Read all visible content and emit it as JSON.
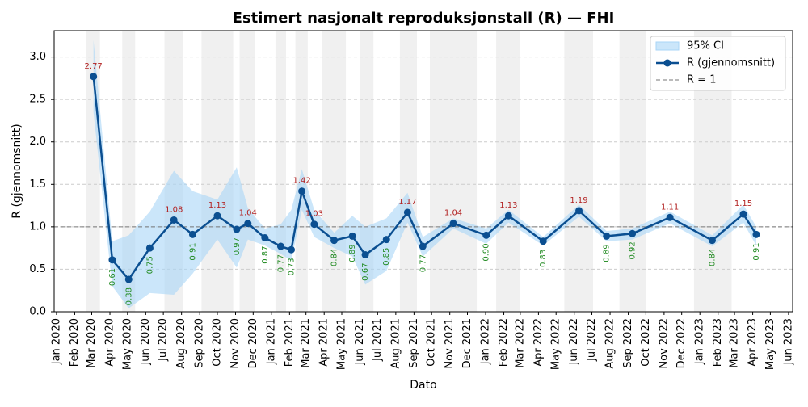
{
  "chart_data": {
    "type": "line",
    "title": "Estimert nasjonalt reproduksjonstall (R) — FHI",
    "x_label": "Dato",
    "y_label": "R (gjennomsnitt)",
    "x": [
      "2020-03-04",
      "2020-04-05",
      "2020-05-03",
      "2020-06-08",
      "2020-07-19",
      "2020-08-20",
      "2020-10-01",
      "2020-11-03",
      "2020-11-22",
      "2020-12-21",
      "2021-01-17",
      "2021-02-04",
      "2021-02-22",
      "2021-03-15",
      "2021-04-18",
      "2021-05-19",
      "2021-06-10",
      "2021-07-16",
      "2021-08-21",
      "2021-09-16",
      "2021-11-07",
      "2022-01-02",
      "2022-02-09",
      "2022-04-09",
      "2022-06-09",
      "2022-07-26",
      "2022-09-08",
      "2022-11-11",
      "2023-01-22",
      "2023-03-16",
      "2023-04-07"
    ],
    "series": [
      {
        "name": "R (gjennomsnitt)",
        "color": "#0b4f91",
        "values": [
          2.77,
          0.61,
          0.38,
          0.75,
          1.08,
          0.91,
          1.13,
          0.97,
          1.04,
          0.87,
          0.77,
          0.73,
          1.42,
          1.03,
          0.84,
          0.89,
          0.67,
          0.85,
          1.17,
          0.77,
          1.04,
          0.9,
          1.13,
          0.83,
          1.19,
          0.89,
          0.92,
          1.11,
          0.84,
          1.15,
          0.91
        ],
        "value_labels": [
          "2.77",
          "0.61",
          "0.38",
          "0.75",
          "1.08",
          "0.91",
          "1.13",
          "0.97",
          "1.04",
          "0.87",
          "0.77",
          "0.73",
          "1.42",
          "1.03",
          "0.84",
          "0.89",
          "0.67",
          "0.85",
          "1.17",
          "0.77",
          "1.04",
          "0.90",
          "1.13",
          "0.83",
          "1.19",
          "0.89",
          "0.92",
          "1.11",
          "0.84",
          "1.15",
          "0.91"
        ]
      }
    ],
    "ci": {
      "name": "95% CI",
      "color": "#a9d5f7",
      "lower": [
        2.35,
        0.3,
        0.04,
        0.22,
        0.2,
        0.45,
        0.85,
        0.52,
        0.85,
        0.78,
        0.68,
        0.6,
        1.2,
        0.88,
        0.75,
        0.65,
        0.32,
        0.48,
        1.05,
        0.65,
        0.98,
        0.8,
        1.05,
        0.78,
        1.12,
        0.83,
        0.85,
        1.04,
        0.77,
        1.05,
        0.78
      ],
      "upper": [
        3.2,
        0.83,
        0.9,
        1.18,
        1.66,
        1.42,
        1.32,
        1.7,
        1.22,
        0.98,
        1.03,
        1.2,
        1.68,
        1.2,
        0.93,
        1.13,
        1.0,
        1.1,
        1.4,
        0.88,
        1.1,
        0.98,
        1.2,
        0.88,
        1.26,
        0.95,
        0.98,
        1.18,
        0.9,
        1.26,
        1.0
      ]
    },
    "ref_line": {
      "name": "R = 1",
      "value": 1,
      "color": "#777777"
    },
    "shaded_periods": [
      [
        "2020-02-21",
        "2020-03-15"
      ],
      [
        "2020-04-22",
        "2020-05-14"
      ],
      [
        "2020-07-03",
        "2020-08-04"
      ],
      [
        "2020-09-04",
        "2020-10-28"
      ],
      [
        "2020-11-08",
        "2020-12-04"
      ],
      [
        "2021-01-08",
        "2021-01-26"
      ],
      [
        "2021-02-11",
        "2021-03-04"
      ],
      [
        "2021-03-29",
        "2021-05-08"
      ],
      [
        "2021-06-01",
        "2021-06-24"
      ],
      [
        "2021-08-08",
        "2021-09-06"
      ],
      [
        "2021-09-28",
        "2021-12-17"
      ],
      [
        "2022-01-19",
        "2022-02-28"
      ],
      [
        "2022-05-15",
        "2022-07-03"
      ],
      [
        "2022-08-17",
        "2022-10-01"
      ],
      [
        "2022-12-22",
        "2023-02-24"
      ]
    ],
    "shade_color": "#f0f0f0",
    "above_color": "#b22222",
    "below_color": "#228b22",
    "xlim": [
      "2019-12-28",
      "2023-06-08"
    ],
    "xticks": [
      {
        "value": "2020-01-01",
        "label": "Jan 2020"
      },
      {
        "value": "2020-02-01",
        "label": "Feb 2020"
      },
      {
        "value": "2020-03-01",
        "label": "Mar 2020"
      },
      {
        "value": "2020-04-01",
        "label": "Apr 2020"
      },
      {
        "value": "2020-05-01",
        "label": "May 2020"
      },
      {
        "value": "2020-06-01",
        "label": "Jun 2020"
      },
      {
        "value": "2020-07-01",
        "label": "Jul 2020"
      },
      {
        "value": "2020-08-01",
        "label": "Aug 2020"
      },
      {
        "value": "2020-09-01",
        "label": "Sep 2020"
      },
      {
        "value": "2020-10-01",
        "label": "Oct 2020"
      },
      {
        "value": "2020-11-01",
        "label": "Nov 2020"
      },
      {
        "value": "2020-12-01",
        "label": "Dec 2020"
      },
      {
        "value": "2021-01-01",
        "label": "Jan 2021"
      },
      {
        "value": "2021-02-01",
        "label": "Feb 2021"
      },
      {
        "value": "2021-03-01",
        "label": "Mar 2021"
      },
      {
        "value": "2021-04-01",
        "label": "Apr 2021"
      },
      {
        "value": "2021-05-01",
        "label": "May 2021"
      },
      {
        "value": "2021-06-01",
        "label": "Jun 2021"
      },
      {
        "value": "2021-07-01",
        "label": "Jul 2021"
      },
      {
        "value": "2021-08-01",
        "label": "Aug 2021"
      },
      {
        "value": "2021-09-01",
        "label": "Sep 2021"
      },
      {
        "value": "2021-10-01",
        "label": "Oct 2021"
      },
      {
        "value": "2021-11-01",
        "label": "Nov 2021"
      },
      {
        "value": "2021-12-01",
        "label": "Dec 2021"
      },
      {
        "value": "2022-01-01",
        "label": "Jan 2022"
      },
      {
        "value": "2022-02-01",
        "label": "Feb 2022"
      },
      {
        "value": "2022-03-01",
        "label": "Mar 2022"
      },
      {
        "value": "2022-04-01",
        "label": "Apr 2022"
      },
      {
        "value": "2022-05-01",
        "label": "May 2022"
      },
      {
        "value": "2022-06-01",
        "label": "Jun 2022"
      },
      {
        "value": "2022-07-01",
        "label": "Jul 2022"
      },
      {
        "value": "2022-08-01",
        "label": "Aug 2022"
      },
      {
        "value": "2022-09-01",
        "label": "Sep 2022"
      },
      {
        "value": "2022-10-01",
        "label": "Oct 2022"
      },
      {
        "value": "2022-11-01",
        "label": "Nov 2022"
      },
      {
        "value": "2022-12-01",
        "label": "Dec 2022"
      },
      {
        "value": "2023-01-01",
        "label": "Jan 2023"
      },
      {
        "value": "2023-02-01",
        "label": "Feb 2023"
      },
      {
        "value": "2023-03-01",
        "label": "Mar 2023"
      },
      {
        "value": "2023-04-01",
        "label": "Apr 2023"
      },
      {
        "value": "2023-05-01",
        "label": "May 2023"
      },
      {
        "value": "2023-06-01",
        "label": "Jun 2023"
      }
    ],
    "ylim": [
      0,
      3.31
    ],
    "yticks": [
      {
        "value": 0,
        "label": "0.0"
      },
      {
        "value": 0.5,
        "label": "0.5"
      },
      {
        "value": 1,
        "label": "1.0"
      },
      {
        "value": 1.5,
        "label": "1.5"
      },
      {
        "value": 2,
        "label": "2.0"
      },
      {
        "value": 2.5,
        "label": "2.5"
      },
      {
        "value": 3,
        "label": "3.0"
      }
    ],
    "grid": true,
    "legend": "upper right"
  }
}
